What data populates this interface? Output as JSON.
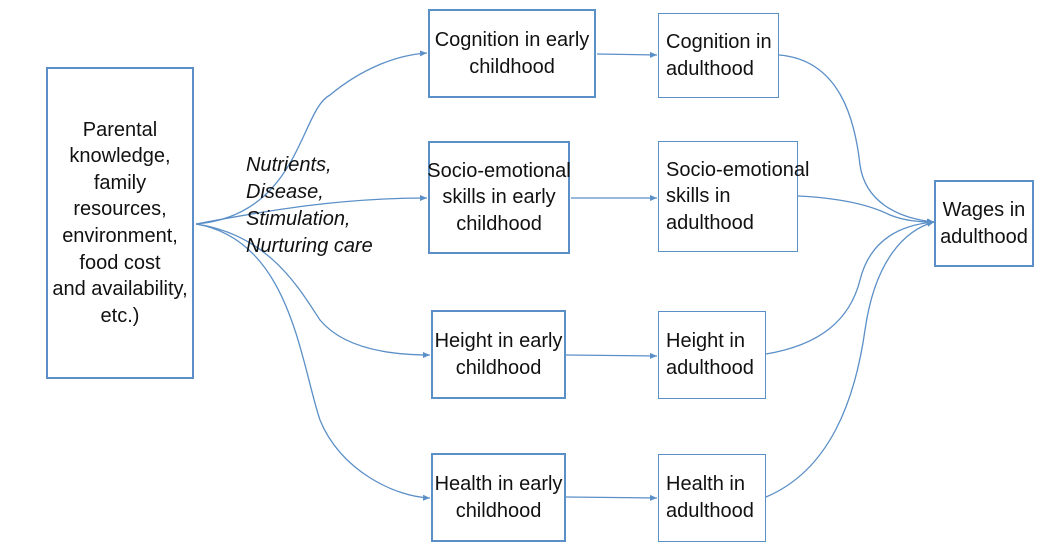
{
  "diagram": {
    "source": {
      "lines": [
        "Parental",
        "knowledge,",
        "family",
        "resources,",
        "environment,",
        "food cost",
        "and availability,",
        "etc.)"
      ]
    },
    "inputs_label": {
      "lines": [
        "Nutrients,",
        "Disease,",
        "Stimulation,",
        "Nurturing care"
      ]
    },
    "early_childhood": [
      {
        "lines": [
          "Cognition in early",
          "childhood"
        ]
      },
      {
        "lines": [
          "Socio-emotional",
          "skills in early",
          "childhood"
        ]
      },
      {
        "lines": [
          "Height in early",
          "childhood"
        ]
      },
      {
        "lines": [
          "Health in early",
          "childhood"
        ]
      }
    ],
    "adulthood": [
      {
        "lines": [
          "Cognition in",
          "adulthood"
        ]
      },
      {
        "lines": [
          "Socio-emotional",
          "skills in",
          "adulthood"
        ]
      },
      {
        "lines": [
          "Height in",
          "adulthood"
        ]
      },
      {
        "lines": [
          "Health in",
          "adulthood"
        ]
      }
    ],
    "outcome": {
      "lines": [
        "Wages in",
        "adulthood"
      ]
    },
    "colors": {
      "border": "#5b8fc7",
      "arrow": "#5b8fc7",
      "text": "#111111"
    }
  }
}
